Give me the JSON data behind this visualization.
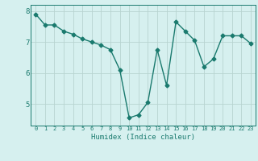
{
  "x": [
    0,
    1,
    2,
    3,
    4,
    5,
    6,
    7,
    8,
    9,
    10,
    11,
    12,
    13,
    14,
    15,
    16,
    17,
    18,
    19,
    20,
    21,
    22,
    23
  ],
  "y": [
    7.9,
    7.55,
    7.55,
    7.35,
    7.25,
    7.1,
    7.0,
    6.9,
    6.75,
    6.1,
    4.55,
    4.65,
    5.05,
    6.75,
    5.6,
    7.65,
    7.35,
    7.05,
    6.2,
    6.45,
    7.2,
    7.2,
    7.2,
    6.95
  ],
  "line_color": "#1a7a6e",
  "marker": "D",
  "marker_size": 2.5,
  "bg_color": "#d6f0ef",
  "grid_color": "#b8d4d0",
  "xlabel": "Humidex (Indice chaleur)",
  "yticks": [
    5,
    6,
    7,
    8
  ],
  "xticks": [
    0,
    1,
    2,
    3,
    4,
    5,
    6,
    7,
    8,
    9,
    10,
    11,
    12,
    13,
    14,
    15,
    16,
    17,
    18,
    19,
    20,
    21,
    22,
    23
  ],
  "xlim": [
    -0.5,
    23.5
  ],
  "ylim": [
    4.3,
    8.2
  ]
}
